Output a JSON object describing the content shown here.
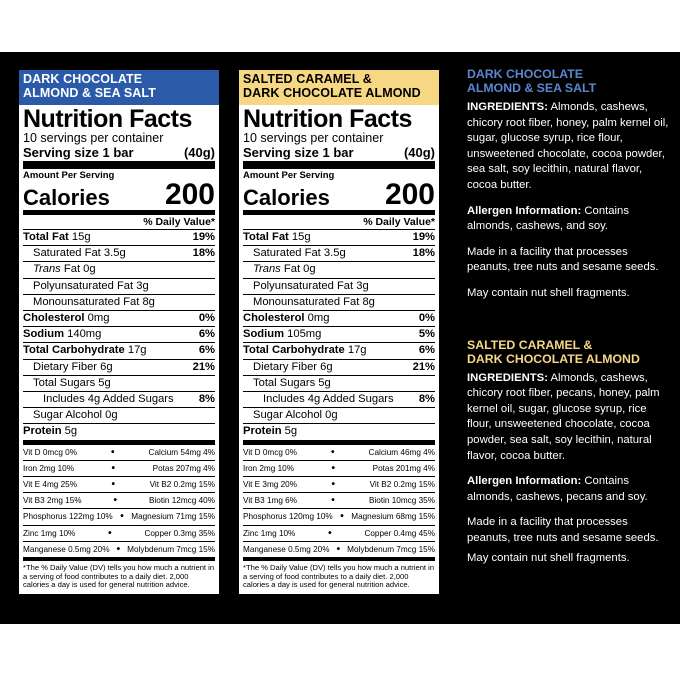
{
  "panels": [
    {
      "flavor_lines": [
        "DARK CHOCOLATE",
        "ALMOND & SEA SALT"
      ],
      "flavor_color": "#2a5aa8",
      "title": "Nutrition Facts",
      "servings": "10 servings per container",
      "serving_size_label": "Serving size 1 bar",
      "serving_size_value": "(40g)",
      "amount_per_serving": "Amount Per Serving",
      "calories_label": "Calories",
      "calories": "200",
      "dv_header": "% Daily Value*",
      "rows": [
        {
          "label": "Total Fat",
          "amount": "15g",
          "pct": "19%"
        },
        {
          "label": "Saturated Fat 3.5g",
          "pct": "18%"
        },
        {
          "label": "Trans",
          "rest": " Fat 0g"
        },
        {
          "label": "Polyunsaturated Fat 3g"
        },
        {
          "label": "Monounsaturated Fat 8g"
        },
        {
          "label": "Cholesterol",
          "amount": "0mg",
          "pct": "0%"
        },
        {
          "label": "Sodium",
          "amount": "140mg",
          "pct": "6%"
        },
        {
          "label": "Total Carbohydrate",
          "amount": "17g",
          "pct": "6%"
        },
        {
          "label": "Dietary Fiber 6g",
          "pct": "21%"
        },
        {
          "label": "Total Sugars 5g"
        },
        {
          "label": "Includes 4g Added Sugars",
          "pct": "8%"
        },
        {
          "label": "Sugar Alcohol 0g"
        },
        {
          "label": "Protein",
          "amount": "5g"
        }
      ],
      "vitamins": [
        [
          "Vit D 0mcg 0%",
          "Calcium 54mg 4%"
        ],
        [
          "Iron 2mg 10%",
          "Potas 207mg 4%"
        ],
        [
          "Vit E 4mg 25%",
          "Vit B2 0.2mg 15%"
        ],
        [
          "Vit B3 2mg 15%",
          "Biotin 12mcg 40%"
        ],
        [
          "Phosphorus 122mg 10%",
          "Magnesium 71mg 15%"
        ],
        [
          "Zinc 1mg 10%",
          "Copper 0.3mg 35%"
        ],
        [
          "Manganese 0.5mg 20%",
          "Molybdenum 7mcg 15%"
        ]
      ],
      "footnote": "*The % Daily Value (DV) tells you how much a nutrient in a serving of food contributes to a daily diet. 2,000 calories a day is used for general nutrition advice."
    },
    {
      "flavor_lines": [
        "SALTED CARAMEL &",
        "DARK CHOCOLATE ALMOND"
      ],
      "flavor_color": "#f6d783",
      "title": "Nutrition Facts",
      "servings": "10 servings per container",
      "serving_size_label": "Serving size 1 bar",
      "serving_size_value": "(40g)",
      "amount_per_serving": "Amount Per Serving",
      "calories_label": "Calories",
      "calories": "200",
      "dv_header": "% Daily Value*",
      "rows": [
        {
          "label": "Total Fat",
          "amount": "15g",
          "pct": "19%"
        },
        {
          "label": "Saturated Fat 3.5g",
          "pct": "18%"
        },
        {
          "label": "Trans",
          "rest": " Fat 0g"
        },
        {
          "label": "Polyunsaturated Fat 3g"
        },
        {
          "label": "Monounsaturated Fat 8g"
        },
        {
          "label": "Cholesterol",
          "amount": "0mg",
          "pct": "0%"
        },
        {
          "label": "Sodium",
          "amount": "105mg",
          "pct": "5%"
        },
        {
          "label": "Total Carbohydrate",
          "amount": "17g",
          "pct": "6%"
        },
        {
          "label": "Dietary Fiber 6g",
          "pct": "21%"
        },
        {
          "label": "Total Sugars 5g"
        },
        {
          "label": "Includes 4g Added Sugars",
          "pct": "8%"
        },
        {
          "label": "Sugar Alcohol 0g"
        },
        {
          "label": "Protein",
          "amount": "5g"
        }
      ],
      "vitamins": [
        [
          "Vit D 0mcg 0%",
          "Calcium 46mg 4%"
        ],
        [
          "Iron 2mg 10%",
          "Potas 201mg 4%"
        ],
        [
          "Vit E 3mg 20%",
          "Vit B2 0.2mg 15%"
        ],
        [
          "Vit B3 1mg 6%",
          "Biotin 10mcg 35%"
        ],
        [
          "Phosphorus 120mg 10%",
          "Magnesium 68mg 15%"
        ],
        [
          "Zinc 1mg 10%",
          "Copper 0.4mg 45%"
        ],
        [
          "Manganese 0.5mg 20%",
          "Molybdenum 7mcg 15%"
        ]
      ],
      "footnote": "*The % Daily Value (DV) tells you how much a nutrient in a serving of food contributes to a daily diet. 2,000 calories a day is used for general nutrition advice."
    }
  ],
  "info": [
    {
      "heading_lines": [
        "DARK CHOCOLATE",
        "ALMOND & SEA SALT"
      ],
      "heading_color": "#5b86d1",
      "ingredients_label": "INGREDIENTS:",
      "ingredients": "Almonds, cashews, chicory root fiber, honey, palm kernel oil, sugar, glucose syrup, rice flour, unsweetened chocolate, cocoa powder, sea salt, soy lecithin, natural flavor, cocoa butter.",
      "allergen_label": "Allergen Information:",
      "allergen": "Contains almonds, cashews, and soy.",
      "facility": "Made in a facility that processes peanuts, tree nuts and sesame seeds.",
      "shell": "May contain nut shell fragments."
    },
    {
      "heading_lines": [
        "SALTED CARAMEL &",
        "DARK CHOCOLATE ALMOND"
      ],
      "heading_color": "#f6d783",
      "ingredients_label": "INGREDIENTS:",
      "ingredients": "Almonds, cashews, chicory root fiber, pecans, honey, palm kernel oil, sugar, glucose syrup, rice flour, unsweetened chocolate, cocoa powder, sea salt, soy lecithin, natural flavor, cocoa butter.",
      "allergen_label": "Allergen Information:",
      "allergen": "Contains almonds, cashews, pecans and soy.",
      "facility": "Made in a facility that processes peanuts, tree nuts and sesame seeds.",
      "shell": "May contain nut shell fragments."
    }
  ]
}
